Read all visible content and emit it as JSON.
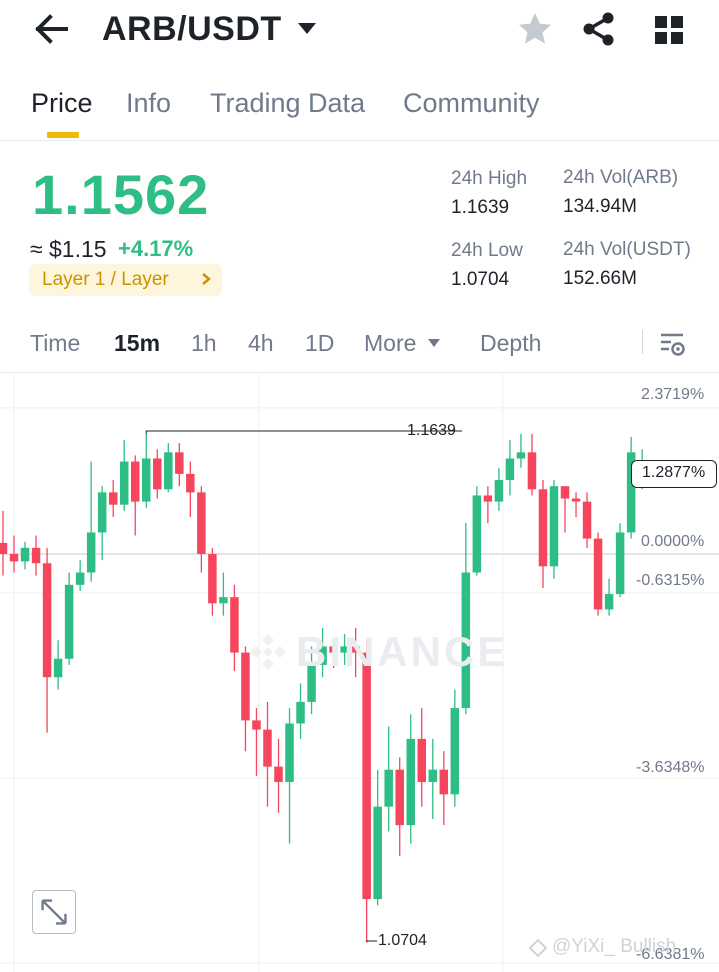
{
  "header": {
    "pair": "ARB/USDT",
    "icons": [
      "back-arrow-icon",
      "caret-down-icon",
      "star-icon",
      "share-icon",
      "grid-icon"
    ]
  },
  "tabs": [
    {
      "label": "Price",
      "active": true
    },
    {
      "label": "Info",
      "active": false
    },
    {
      "label": "Trading Data",
      "active": false
    },
    {
      "label": "Community",
      "active": false
    }
  ],
  "price": {
    "last": "1.1562",
    "fiat": "≈ $1.15",
    "change": "+4.17%",
    "tag": "Layer 1 / Layer",
    "color_up": "#2ebd85",
    "color_down": "#f6465d",
    "accent": "#f0b90b"
  },
  "stats": {
    "high_label": "24h High",
    "high_value": "1.1639",
    "low_label": "24h Low",
    "low_value": "1.0704",
    "vol_base_label": "24h Vol(ARB)",
    "vol_base_value": "134.94M",
    "vol_quote_label": "24h Vol(USDT)",
    "vol_quote_value": "152.66M"
  },
  "intervals": {
    "time": "Time",
    "m15": "15m",
    "h1": "1h",
    "h4": "4h",
    "d1": "1D",
    "more": "More",
    "depth": "Depth",
    "selected": "15m"
  },
  "chart": {
    "axis_labels": [
      "2.3719%",
      "0.0000%",
      "-0.6315%",
      "-3.6348%",
      "-6.6381%"
    ],
    "current_label": "1.2877%",
    "high_marker": "1.1639",
    "low_marker": "1.0704",
    "watermark": "BINANCE",
    "credit": "@YiXi_ Bullish"
  },
  "chart_data": {
    "type": "candlestick",
    "interval": "15m",
    "y_axis_unit": "% change",
    "y_ticks": [
      2.3719,
      0.0,
      -0.6315,
      -3.6348,
      -6.6381
    ],
    "high": 1.1639,
    "low": 1.0704,
    "candles": [
      {
        "o": 0.18,
        "c": 0.0,
        "h": 0.7,
        "l": -0.35
      },
      {
        "o": 0.0,
        "c": -0.12,
        "h": 0.3,
        "l": -0.3
      },
      {
        "o": -0.12,
        "c": 0.1,
        "h": 0.2,
        "l": -0.25
      },
      {
        "o": 0.1,
        "c": -0.15,
        "h": 0.3,
        "l": -0.35
      },
      {
        "o": -0.15,
        "c": -2.0,
        "h": 0.1,
        "l": -2.9
      },
      {
        "o": -2.0,
        "c": -1.7,
        "h": -1.4,
        "l": -2.2
      },
      {
        "o": -1.7,
        "c": -0.5,
        "h": -0.3,
        "l": -1.8
      },
      {
        "o": -0.5,
        "c": -0.3,
        "h": -0.1,
        "l": -0.6
      },
      {
        "o": -0.3,
        "c": 0.35,
        "h": 1.5,
        "l": -0.45
      },
      {
        "o": 0.35,
        "c": 1.0,
        "h": 1.1,
        "l": -0.1
      },
      {
        "o": 1.0,
        "c": 0.8,
        "h": 1.2,
        "l": 0.6
      },
      {
        "o": 0.8,
        "c": 1.5,
        "h": 1.85,
        "l": 0.7
      },
      {
        "o": 1.5,
        "c": 0.85,
        "h": 1.6,
        "l": 0.3
      },
      {
        "o": 0.85,
        "c": 1.55,
        "h": 1.95,
        "l": 0.75
      },
      {
        "o": 1.55,
        "c": 1.05,
        "h": 1.7,
        "l": 0.9
      },
      {
        "o": 1.05,
        "c": 1.65,
        "h": 1.8,
        "l": 1.0
      },
      {
        "o": 1.65,
        "c": 1.3,
        "h": 1.8,
        "l": 1.1
      },
      {
        "o": 1.3,
        "c": 1.0,
        "h": 1.5,
        "l": 0.6
      },
      {
        "o": 1.0,
        "c": 0.0,
        "h": 1.1,
        "l": -0.3
      },
      {
        "o": 0.0,
        "c": -0.8,
        "h": 0.1,
        "l": -1.0
      },
      {
        "o": -0.8,
        "c": -0.7,
        "h": -0.3,
        "l": -1.0
      },
      {
        "o": -0.7,
        "c": -1.6,
        "h": -0.5,
        "l": -1.9
      },
      {
        "o": -1.6,
        "c": -2.7,
        "h": -1.5,
        "l": -3.2
      },
      {
        "o": -2.7,
        "c": -2.85,
        "h": -2.5,
        "l": -3.6
      },
      {
        "o": -2.85,
        "c": -3.45,
        "h": -2.4,
        "l": -4.1
      },
      {
        "o": -3.45,
        "c": -3.7,
        "h": -3.0,
        "l": -4.2
      },
      {
        "o": -3.7,
        "c": -2.75,
        "h": -2.5,
        "l": -4.7
      },
      {
        "o": -2.75,
        "c": -2.4,
        "h": -2.1,
        "l": -3.0
      },
      {
        "o": -2.4,
        "c": -1.8,
        "h": -1.5,
        "l": -2.6
      },
      {
        "o": -1.8,
        "c": -1.5,
        "h": -1.2,
        "l": -2.0
      },
      {
        "o": -1.5,
        "c": -1.6,
        "h": -1.4,
        "l": -1.85
      },
      {
        "o": -1.6,
        "c": -1.5,
        "h": -1.3,
        "l": -1.8
      },
      {
        "o": -1.5,
        "c": -1.6,
        "h": -1.2,
        "l": -2.0
      },
      {
        "o": -1.6,
        "c": -5.6,
        "h": -1.4,
        "l": -6.3
      },
      {
        "o": -5.6,
        "c": -4.1,
        "h": -3.5,
        "l": -5.7
      },
      {
        "o": -4.1,
        "c": -3.5,
        "h": -2.8,
        "l": -4.5
      },
      {
        "o": -3.5,
        "c": -4.4,
        "h": -3.3,
        "l": -4.9
      },
      {
        "o": -4.4,
        "c": -3.0,
        "h": -2.6,
        "l": -4.7
      },
      {
        "o": -3.0,
        "c": -3.7,
        "h": -2.5,
        "l": -4.1
      },
      {
        "o": -3.7,
        "c": -3.5,
        "h": -3.0,
        "l": -4.3
      },
      {
        "o": -3.5,
        "c": -3.9,
        "h": -3.2,
        "l": -4.4
      },
      {
        "o": -3.9,
        "c": -2.5,
        "h": -2.2,
        "l": -4.1
      },
      {
        "o": -2.5,
        "c": -0.3,
        "h": 0.5,
        "l": -2.6
      },
      {
        "o": -0.3,
        "c": 0.95,
        "h": 1.1,
        "l": -0.35
      },
      {
        "o": 0.95,
        "c": 0.85,
        "h": 1.1,
        "l": 0.5
      },
      {
        "o": 0.85,
        "c": 1.2,
        "h": 1.4,
        "l": 0.7
      },
      {
        "o": 1.2,
        "c": 1.55,
        "h": 1.85,
        "l": 0.95
      },
      {
        "o": 1.55,
        "c": 1.65,
        "h": 1.95,
        "l": 1.4
      },
      {
        "o": 1.65,
        "c": 1.05,
        "h": 1.95,
        "l": 0.95
      },
      {
        "o": 1.05,
        "c": -0.2,
        "h": 1.2,
        "l": -0.55
      },
      {
        "o": -0.2,
        "c": 1.1,
        "h": 1.2,
        "l": -0.4
      },
      {
        "o": 1.1,
        "c": 0.9,
        "h": 1.1,
        "l": 0.35
      },
      {
        "o": 0.9,
        "c": 0.85,
        "h": 1.0,
        "l": 0.6
      },
      {
        "o": 0.85,
        "c": 0.25,
        "h": 1.0,
        "l": 0.1
      },
      {
        "o": 0.25,
        "c": -0.9,
        "h": 0.35,
        "l": -1.0
      },
      {
        "o": -0.9,
        "c": -0.65,
        "h": -0.4,
        "l": -1.0
      },
      {
        "o": -0.65,
        "c": 0.35,
        "h": 0.5,
        "l": -0.7
      },
      {
        "o": 0.35,
        "c": 1.65,
        "h": 1.9,
        "l": 0.25
      },
      {
        "o": 1.29,
        "c": 1.29,
        "h": 1.7,
        "l": 1.05
      }
    ]
  }
}
